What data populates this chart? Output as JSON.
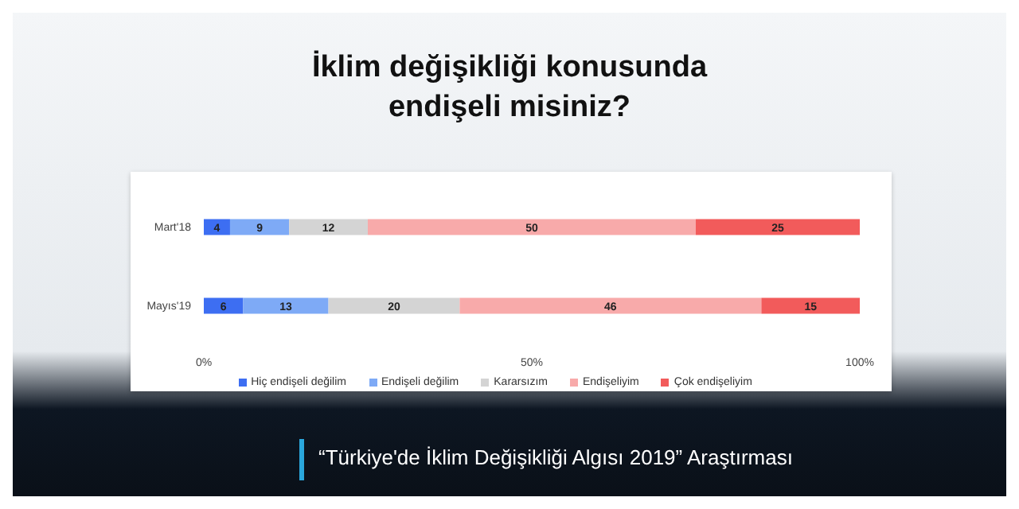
{
  "chart_data": {
    "type": "bar",
    "orientation": "horizontal",
    "stacked": true,
    "title": "İklim değişikliği konusunda endişeli misiniz?",
    "categories": [
      "Mart'18",
      "Mayıs'19"
    ],
    "series": [
      {
        "name": "Hiç endişeli değilim",
        "color": "#3d6ef2",
        "values": [
          4,
          6
        ]
      },
      {
        "name": "Endişeli değilim",
        "color": "#7eaaf6",
        "values": [
          9,
          13
        ]
      },
      {
        "name": "Kararsızım",
        "color": "#d4d4d4",
        "values": [
          12,
          20
        ]
      },
      {
        "name": "Endişeliyim",
        "color": "#f8aaaa",
        "values": [
          50,
          46
        ]
      },
      {
        "name": "Çok endişeliyim",
        "color": "#f25b5b",
        "values": [
          25,
          15
        ]
      }
    ],
    "xlim": [
      0,
      100
    ],
    "xticks": [
      {
        "value": 0,
        "label": "0%"
      },
      {
        "value": 50,
        "label": "50%"
      },
      {
        "value": 100,
        "label": "100%"
      }
    ],
    "data_labels": true,
    "legend": "bottom",
    "grid": false,
    "annotations": [
      "“Türkiye'de İklim Değişikliği Algısı 2019” Araştırması"
    ]
  }
}
